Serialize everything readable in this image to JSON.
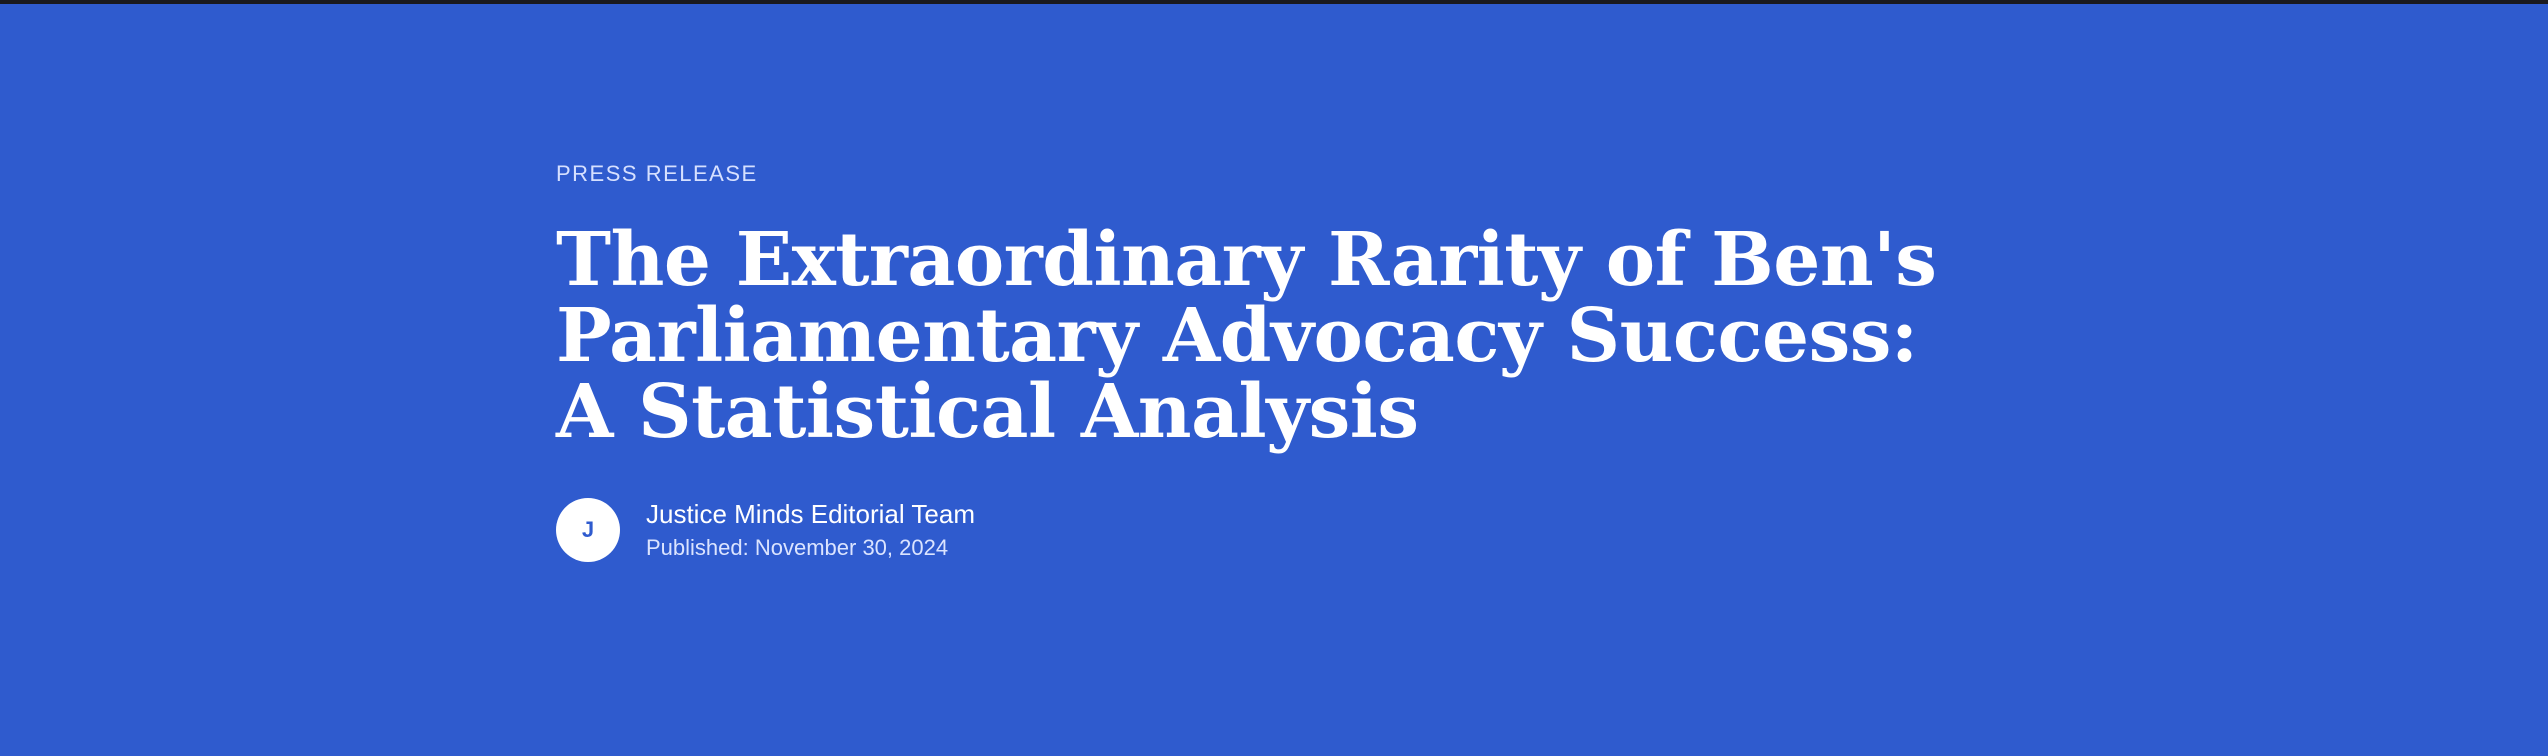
{
  "header": {
    "kicker": "PRESS RELEASE",
    "title": "The Extraordinary Rarity of Ben's Parliamentary Advocacy Success: A Statistical Analysis"
  },
  "byline": {
    "avatar_initial": "J",
    "author": "Justice Minds Editorial Team",
    "published": "Published: November 30, 2024"
  },
  "colors": {
    "background": "#2f5bce",
    "text": "#ffffff",
    "top_edge": "#1a1a1f"
  }
}
